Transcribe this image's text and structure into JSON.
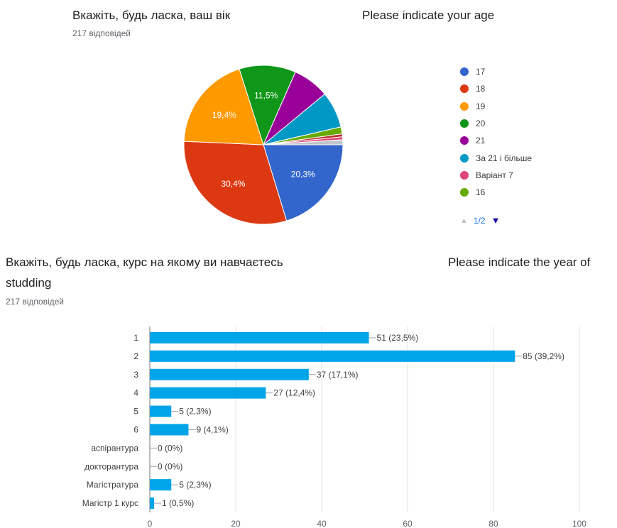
{
  "q1": {
    "title": "Вкажіть, будь ласка, ваш вік",
    "title_en": "Please indicate your age",
    "responses": "217 відповідей",
    "pager": "1/2"
  },
  "q2": {
    "title_line1": "Вкажіть, будь ласка, курс на якому ви навчаєтесь",
    "title_line2": "studding",
    "title_en": "Please indicate the year of",
    "responses": "217 відповідей"
  },
  "colors": {
    "17": "#3366cc",
    "18": "#dc3912",
    "19": "#ff9900",
    "20": "#109618",
    "21": "#990099",
    "over21": "#0099c6",
    "v7": "#dd4477",
    "16": "#66aa00",
    "extra1": "#b82e2e",
    "extra2": "#c2c6cc",
    "bar": "#00a4e8"
  },
  "chart_data": [
    {
      "type": "pie",
      "title": "Вкажіть, будь ласка, ваш вік",
      "slices": [
        {
          "label": "17",
          "value": 20.3,
          "color": "#3366cc",
          "pct_label": "20,3%"
        },
        {
          "label": "18",
          "value": 30.4,
          "color": "#dc3912",
          "pct_label": "30,4%"
        },
        {
          "label": "19",
          "value": 19.4,
          "color": "#ff9900",
          "pct_label": "19,4%"
        },
        {
          "label": "20",
          "value": 11.5,
          "color": "#109618",
          "pct_label": "11,5%"
        },
        {
          "label": "21",
          "value": 7.4,
          "color": "#990099",
          "pct_label": ""
        },
        {
          "label": "За 21 і більше",
          "value": 7.4,
          "color": "#0099c6",
          "pct_label": ""
        },
        {
          "label": "16",
          "value": 1.4,
          "color": "#66aa00",
          "pct_label": ""
        },
        {
          "label": "",
          "value": 0.6,
          "color": "#b82e2e",
          "pct_label": ""
        },
        {
          "label": "Варіант 7",
          "value": 0.6,
          "color": "#dd4477",
          "pct_label": ""
        },
        {
          "label": "",
          "value": 1.0,
          "color": "#c2c6cc",
          "pct_label": ""
        }
      ],
      "legend": [
        {
          "label": "17",
          "color": "#3366cc"
        },
        {
          "label": "18",
          "color": "#dc3912"
        },
        {
          "label": "19",
          "color": "#ff9900"
        },
        {
          "label": "20",
          "color": "#109618"
        },
        {
          "label": "21",
          "color": "#990099"
        },
        {
          "label": "За 21 і більше",
          "color": "#0099c6"
        },
        {
          "label": "Варіант 7",
          "color": "#dd4477"
        },
        {
          "label": "16",
          "color": "#66aa00"
        }
      ]
    },
    {
      "type": "bar",
      "orientation": "horizontal",
      "title": "Вкажіть, будь ласка, курс на якому ви навчаєтесь",
      "categories": [
        "1",
        "2",
        "3",
        "4",
        "5",
        "6",
        "аспірантура",
        "докторантура",
        "Магістратура",
        "Магістр 1 курс"
      ],
      "values": [
        51,
        85,
        37,
        27,
        5,
        9,
        0,
        0,
        5,
        1
      ],
      "value_labels": [
        "51 (23,5%)",
        "85 (39,2%)",
        "37 (17,1%)",
        "27 (12,4%)",
        "5 (2,3%)",
        "9 (4,1%)",
        "0 (0%)",
        "0 (0%)",
        "5 (2,3%)",
        "1 (0,5%)"
      ],
      "xlim": [
        0,
        100
      ],
      "xticks": [
        "0",
        "20",
        "40",
        "60",
        "80",
        "100"
      ],
      "grid": true
    }
  ]
}
